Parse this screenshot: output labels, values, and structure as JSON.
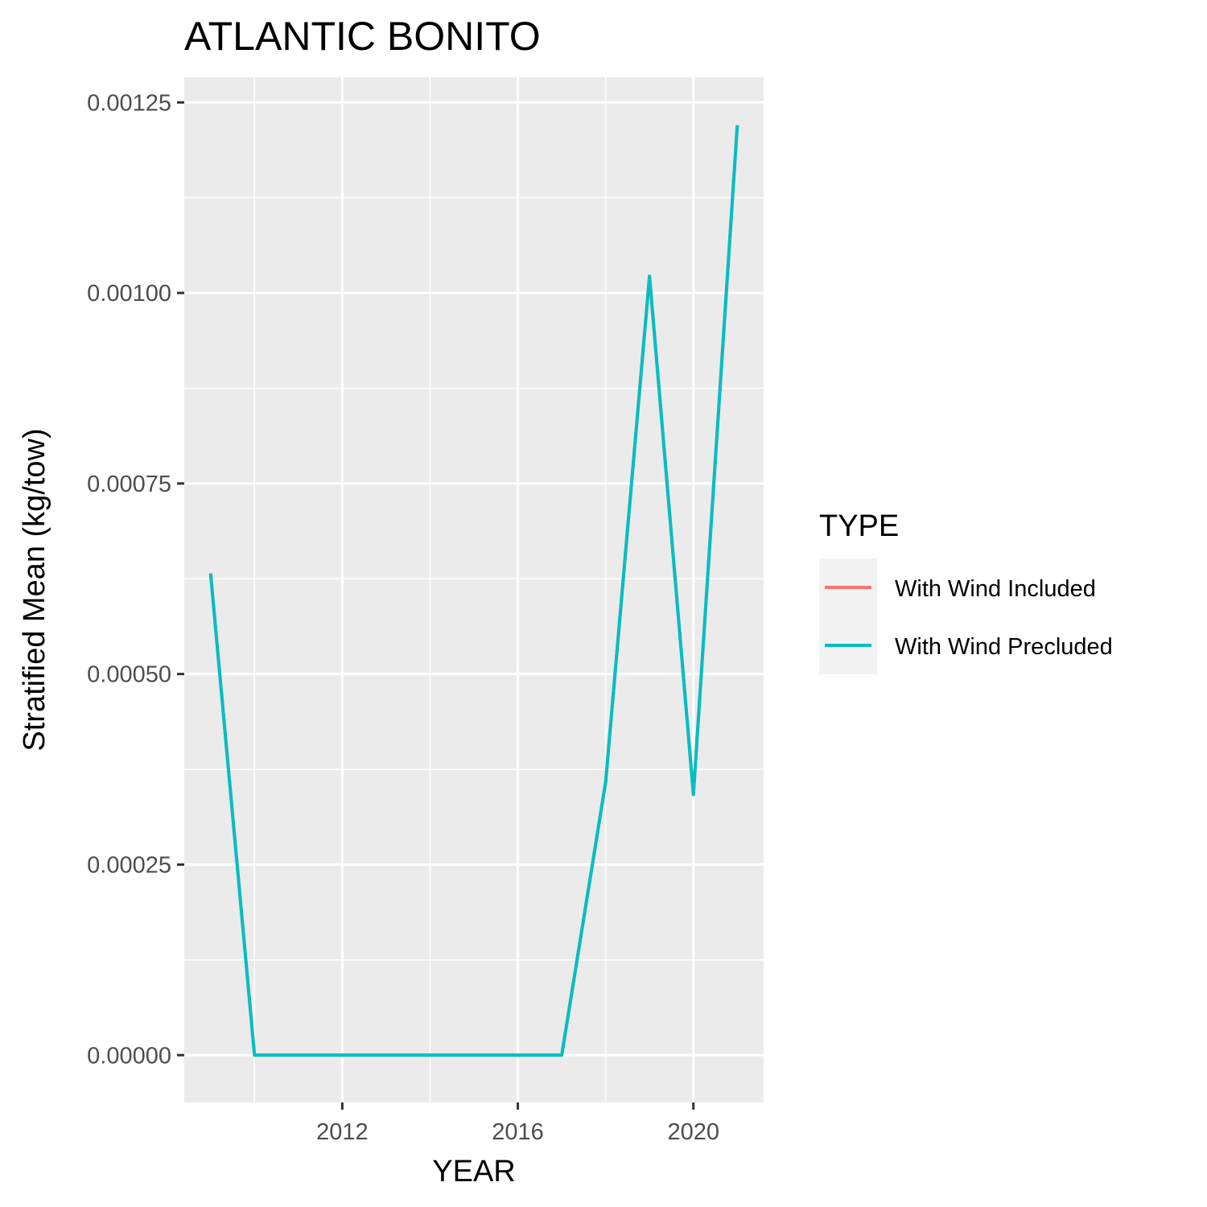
{
  "chart_data": {
    "type": "line",
    "title": "ATLANTIC BONITO",
    "xlabel": "YEAR",
    "ylabel": "Stratified Mean (kg/tow)",
    "xlim": [
      2008.4,
      2021.6
    ],
    "ylim": [
      -6.2e-05,
      0.001283
    ],
    "x_ticks": [
      2012,
      2016,
      2020
    ],
    "x_tick_labels": [
      "2012",
      "2016",
      "2020"
    ],
    "y_ticks": [
      0,
      0.00025,
      0.0005,
      0.00075,
      0.001,
      0.00125
    ],
    "y_tick_labels": [
      "0.00000",
      "0.00025",
      "0.00050",
      "0.00075",
      "0.00100",
      "0.00125"
    ],
    "x": [
      2009,
      2010,
      2011,
      2012,
      2013,
      2014,
      2015,
      2016,
      2017,
      2018,
      2019,
      2020,
      2021
    ],
    "series": [
      {
        "name": "With Wind Included",
        "color": "#F8766D",
        "values": [
          0.000632,
          0,
          0,
          0,
          0,
          0,
          0,
          0,
          0,
          0.000358,
          0.001022,
          0.000342,
          0.00122
        ]
      },
      {
        "name": "With Wind Precluded",
        "color": "#00BFC4",
        "values": [
          0.000632,
          0,
          0,
          0,
          0,
          0,
          0,
          0,
          0,
          0.000358,
          0.001022,
          0.000342,
          0.00122
        ]
      }
    ],
    "grid": true,
    "panel_color": "#EBEBEB",
    "legend_title": "TYPE",
    "legend_position": "right"
  }
}
